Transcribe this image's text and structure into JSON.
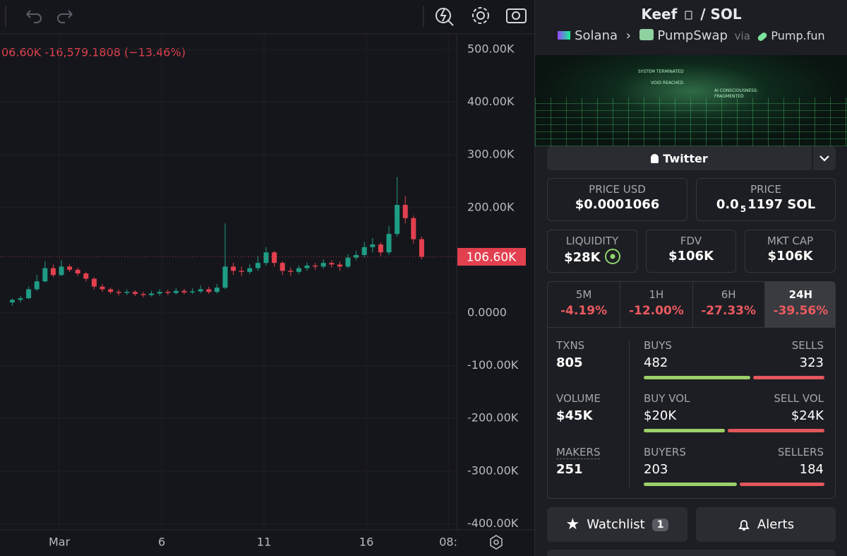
{
  "chart_data": {
    "type": "candlestick",
    "legend": "06.60K -16,579.1808 (−13.46%)",
    "up_color": "#1f9c85",
    "down_color": "#e2404f",
    "x": [
      -1.3,
      -0.9,
      -0.5,
      -0.1,
      0.3,
      0.7,
      1.1,
      1.5,
      1.9,
      2.3,
      2.7,
      3.1,
      3.5,
      3.9,
      4.3,
      4.7,
      5.1,
      5.5,
      5.9,
      6.3,
      6.7,
      7.1,
      7.5,
      7.9,
      8.3,
      8.7,
      9.1,
      9.5,
      9.9,
      10.3,
      10.7,
      11.1,
      11.5,
      11.9,
      12.3,
      12.7,
      13.1,
      13.5,
      13.9,
      14.3,
      14.7,
      15.1,
      15.5,
      15.9,
      16.3,
      16.7,
      17.1,
      17.5,
      17.9,
      18.3,
      18.7
    ],
    "open": [
      20,
      25,
      28,
      45,
      60,
      85,
      72,
      88,
      82,
      75,
      65,
      50,
      45,
      40,
      38,
      40,
      36,
      34,
      37,
      40,
      38,
      42,
      39,
      41,
      45,
      40,
      48,
      88,
      80,
      78,
      85,
      95,
      115,
      95,
      80,
      78,
      85,
      90,
      88,
      95,
      92,
      88,
      105,
      110,
      125,
      130,
      115,
      150,
      205,
      180,
      140
    ],
    "high": [
      28,
      32,
      50,
      72,
      98,
      92,
      100,
      92,
      86,
      78,
      68,
      55,
      48,
      44,
      45,
      43,
      40,
      42,
      45,
      44,
      48,
      46,
      47,
      52,
      50,
      55,
      170,
      95,
      88,
      92,
      108,
      125,
      118,
      98,
      86,
      90,
      96,
      95,
      102,
      100,
      98,
      112,
      118,
      135,
      142,
      134,
      165,
      258,
      222,
      185,
      145
    ],
    "low": [
      14,
      20,
      26,
      42,
      58,
      68,
      70,
      78,
      70,
      60,
      45,
      40,
      36,
      33,
      34,
      32,
      30,
      31,
      33,
      34,
      35,
      35,
      36,
      38,
      36,
      37,
      45,
      72,
      70,
      74,
      80,
      90,
      88,
      72,
      70,
      74,
      80,
      82,
      84,
      86,
      80,
      85,
      100,
      105,
      115,
      108,
      110,
      145,
      170,
      132,
      102
    ],
    "close": [
      25,
      28,
      45,
      60,
      85,
      72,
      88,
      82,
      75,
      65,
      50,
      45,
      40,
      38,
      40,
      36,
      34,
      37,
      40,
      38,
      42,
      39,
      41,
      45,
      40,
      48,
      88,
      80,
      78,
      85,
      95,
      115,
      95,
      80,
      78,
      85,
      90,
      88,
      95,
      92,
      88,
      105,
      110,
      125,
      130,
      115,
      150,
      205,
      180,
      140,
      106.6
    ],
    "xlim": [
      -1.9,
      20.41
    ],
    "xticks": [
      {
        "value": 1,
        "label": "Mar"
      },
      6,
      11,
      16,
      {
        "value": 20,
        "label": "08:"
      }
    ],
    "ylim": [
      -411.5,
      529.5
    ],
    "yticks": [
      {
        "value": 500,
        "label": "500.00K"
      },
      {
        "value": 400,
        "label": "400.00K"
      },
      {
        "value": 300,
        "label": "300.00K"
      },
      {
        "value": 200,
        "label": "200.00K"
      },
      {
        "value": 0,
        "label": "0.0000"
      },
      {
        "value": -100,
        "label": "-100.00K"
      },
      {
        "value": -200,
        "label": "-200.00K"
      },
      {
        "value": -300,
        "label": "-300.00K"
      },
      {
        "value": -400,
        "label": "-400.00K"
      }
    ],
    "last_price": {
      "value": 106.6,
      "label": "106.60K"
    },
    "grid": true
  },
  "header": {
    "token": "Keef",
    "sep": "/",
    "quote": "SOL",
    "chain": "Solana",
    "dex": "PumpSwap",
    "via": "via",
    "launchpad": "Pump.fun"
  },
  "banner": {
    "lines": [
      "SYSTEM TERMINATED",
      "VOID REACHED",
      "AI CONSCIOUSNESS:",
      "FRAGMENTED"
    ]
  },
  "social": {
    "label": "Twitter"
  },
  "price_usd": {
    "label": "PRICE USD",
    "value": "$0.0001066"
  },
  "price_native": {
    "label": "PRICE",
    "lead": "0.0",
    "zeros": "5",
    "rest": "1197 SOL"
  },
  "metrics": [
    {
      "label": "LIQUIDITY",
      "value": "$28K"
    },
    {
      "label": "FDV",
      "value": "$106K"
    },
    {
      "label": "MKT CAP",
      "value": "$106K"
    }
  ],
  "timeframes": [
    {
      "label": "5M",
      "change": "-4.19%"
    },
    {
      "label": "1H",
      "change": "-12.00%"
    },
    {
      "label": "6H",
      "change": "-27.33%"
    },
    {
      "label": "24H",
      "change": "-39.56%"
    }
  ],
  "active_timeframe": 3,
  "stats": {
    "txns": {
      "label": "TXNS",
      "value": 805
    },
    "volume": {
      "label": "VOLUME",
      "value": "$45K"
    },
    "makers": {
      "label": "MAKERS",
      "value": 251
    },
    "buys": {
      "label": "BUYS",
      "value": 482
    },
    "sells": {
      "label": "SELLS",
      "value": 323
    },
    "buy_vol": {
      "label": "BUY VOL",
      "value": 20000,
      "value_label": "$20K"
    },
    "sell_vol": {
      "label": "SELL VOL",
      "value": 24000,
      "value_label": "$24K"
    },
    "buyers": {
      "label": "BUYERS",
      "value": 203
    },
    "sellers": {
      "label": "SELLERS",
      "value": 184
    }
  },
  "buttons": {
    "watchlist": "Watchlist",
    "watch_count": 1,
    "alerts": "Alerts"
  }
}
